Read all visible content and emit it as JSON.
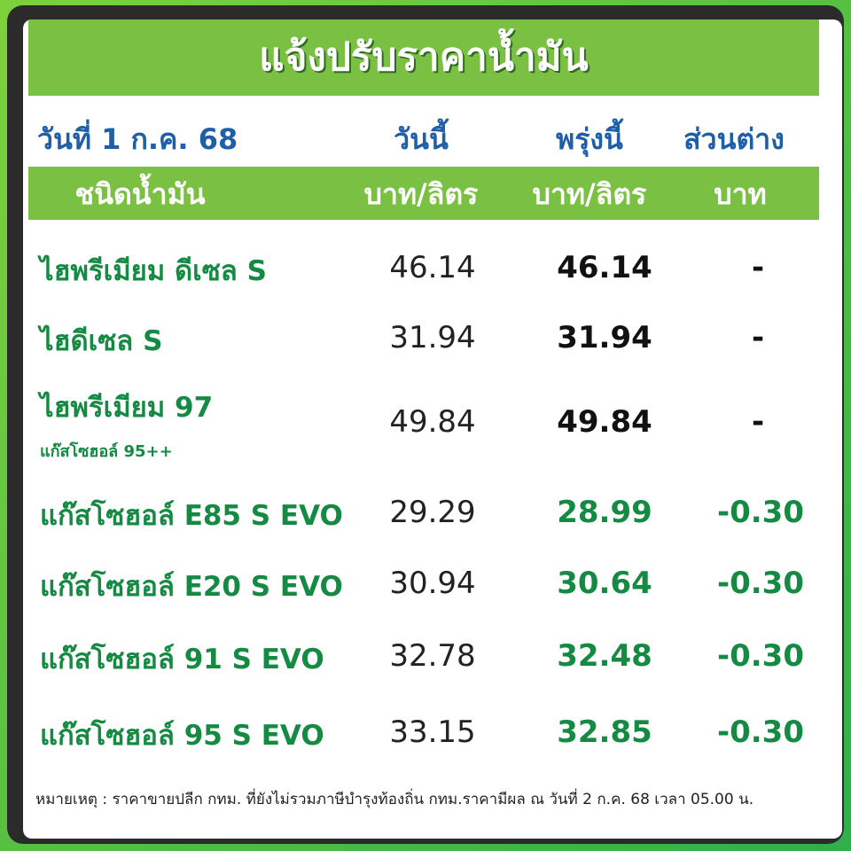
{
  "header": {
    "title": "แจ้งปรับราคาน้ำมัน"
  },
  "table": {
    "date": "วันที่ 1 ก.ค. 68",
    "columns": [
      "วันนี้",
      "พรุ่งนี้",
      "ส่วนต่าง"
    ],
    "units": [
      "ชนิดน้ำมัน",
      "บาท/ลิตร",
      "บาท/ลิตร",
      "บาท"
    ],
    "rows": [
      {
        "name": "ไฮพรีเมียม ดีเซล S",
        "today": "46.14",
        "tomorrow": "46.14",
        "diff": "-"
      },
      {
        "name": "ไฮดีเซล S",
        "today": "31.94",
        "tomorrow": "31.94",
        "diff": "-"
      },
      {
        "name": "ไฮพรีเมียม 97",
        "sub": "แก๊สโซฮอล์ 95++",
        "today": "49.84",
        "tomorrow": "49.84",
        "diff": "-"
      },
      {
        "name": "แก๊สโซฮอล์ E85 S EVO",
        "today": "29.29",
        "tomorrow": "28.99",
        "diff": "-0.30"
      },
      {
        "name": "แก๊สโซฮอล์ E20 S EVO",
        "today": "30.94",
        "tomorrow": "30.64",
        "diff": "-0.30"
      },
      {
        "name": "แก๊สโซฮอล์ 91 S EVO",
        "today": "32.78",
        "tomorrow": "32.48",
        "diff": "-0.30"
      },
      {
        "name": "แก๊สโซฮอล์ 95 S EVO",
        "today": "33.15",
        "tomorrow": "32.85",
        "diff": "-0.30"
      }
    ]
  },
  "note": "หมายเหตุ : ราคาขายปลีก กทม. ที่ยังไม่รวมภาษีบำรุงท้องถิ่น กทม.ราคามีผล ณ วันที่ 2 ก.ค. 68 เวลา 05.00 น."
}
